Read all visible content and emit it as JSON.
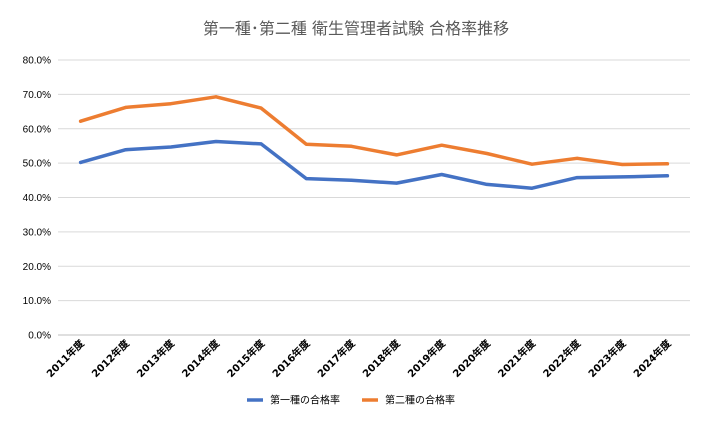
{
  "chart_data": {
    "type": "line",
    "title": "第一種･第二種 衛生管理者試験 合格率推移",
    "categories": [
      "2011年度",
      "2012年度",
      "2013年度",
      "2014年度",
      "2015年度",
      "2016年度",
      "2017年度",
      "2018年度",
      "2019年度",
      "2020年度",
      "2021年度",
      "2022年度",
      "2023年度",
      "2024年度"
    ],
    "series": [
      {
        "name": "第一種の合格率",
        "color": "#4472c4",
        "values": [
          50.2,
          53.9,
          54.7,
          56.3,
          55.6,
          45.5,
          45.0,
          44.2,
          46.7,
          43.8,
          42.7,
          45.8,
          46.0,
          46.3
        ]
      },
      {
        "name": "第二種の合格率",
        "color": "#ed7d31",
        "values": [
          62.2,
          66.2,
          67.3,
          69.3,
          66.0,
          55.5,
          54.9,
          52.4,
          55.2,
          52.8,
          49.7,
          51.4,
          49.6,
          49.8
        ]
      }
    ],
    "ylim": [
      0,
      80
    ],
    "yticks": [
      "0.0%",
      "10.0%",
      "20.0%",
      "30.0%",
      "40.0%",
      "50.0%",
      "60.0%",
      "70.0%",
      "80.0%"
    ],
    "ytick_values": [
      0,
      10,
      20,
      30,
      40,
      50,
      60,
      70,
      80
    ],
    "grid": true,
    "legend": "bottom"
  }
}
